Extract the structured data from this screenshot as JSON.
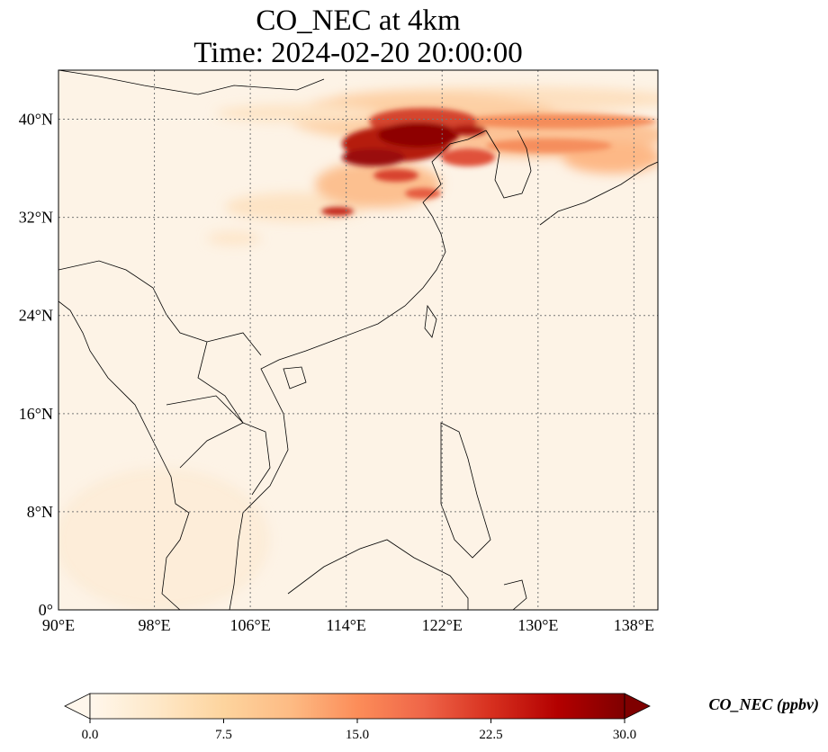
{
  "title": {
    "line1": "CO_NEC at 4km",
    "line2": "Time: 2024-02-20 20:00:00"
  },
  "map": {
    "lon_range": [
      90,
      140
    ],
    "lat_range": [
      0,
      44
    ],
    "lon_ticks": [
      "90°E",
      "98°E",
      "106°E",
      "114°E",
      "122°E",
      "130°E",
      "138°E"
    ],
    "lat_ticks": [
      "0°",
      "8°N",
      "16°N",
      "24°N",
      "32°N",
      "40°N"
    ],
    "gridlines": true,
    "variable": "CO_NEC",
    "units": "ppbv"
  },
  "colorbar": {
    "label": "CO_NEC (ppbv)",
    "ticks": [
      "0.0",
      "7.5",
      "15.0",
      "22.5",
      "30.0"
    ],
    "min": 0,
    "max": 30,
    "extend": "both",
    "colormap": "OrRd",
    "colors": [
      "#fff7ec",
      "#fee8c8",
      "#fdd49e",
      "#fdbb84",
      "#fc8d59",
      "#ef6548",
      "#d7301f",
      "#b30000",
      "#7f0000"
    ]
  }
}
